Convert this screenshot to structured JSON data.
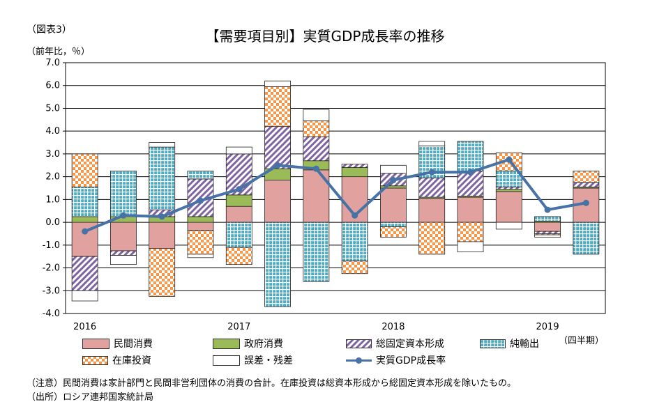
{
  "header": {
    "figure_label": "（図表3）",
    "title": "【需要項目別】実質GDP成長率の推移",
    "unit": "（前年比，％）",
    "period_label": "（四半期）"
  },
  "footer": {
    "note": "（注意）民間消費は家計部門と民間非営利団体の消費の合計。在庫投資は総資本形成から総固定資本形成を除いたもの。",
    "source": "（出所）ロシア連邦国家統計局"
  },
  "colors": {
    "private_consumption": "#e0a19f",
    "government_consumption": "#9bbb59",
    "fixed_capital": "#8064a2",
    "net_exports": "#4bacc6",
    "inventory": "#f79646",
    "error": "#ffffff",
    "gdp_line": "#4672a6"
  },
  "chart_data": {
    "type": "bar",
    "stacked": true,
    "title": "【需要項目別】実質GDP成長率の推移",
    "ylabel": "（前年比，％）",
    "xlabel": "（四半期）",
    "ylim": [
      -4.0,
      7.0
    ],
    "yticks": [
      "7.0",
      "6.0",
      "5.0",
      "4.0",
      "3.0",
      "2.0",
      "1.0",
      "0.0",
      "-1.0",
      "-2.0",
      "-3.0",
      "-4.0"
    ],
    "year_labels": [
      {
        "label": "2016",
        "at_index": 0
      },
      {
        "label": "2017",
        "at_index": 4
      },
      {
        "label": "2018",
        "at_index": 8
      },
      {
        "label": "2019",
        "at_index": 12
      }
    ],
    "categories": [
      "2016Q1",
      "2016Q2",
      "2016Q3",
      "2016Q4",
      "2017Q1",
      "2017Q2",
      "2017Q3",
      "2017Q4",
      "2018Q1",
      "2018Q2",
      "2018Q3",
      "2018Q4",
      "2019Q1",
      "2019Q2"
    ],
    "grid": true,
    "legend_position": "bottom",
    "series": [
      {
        "key": "private_consumption",
        "name": "民間消費",
        "kind": "bar",
        "values": [
          -1.5,
          -1.25,
          -1.15,
          -0.35,
          0.7,
          1.85,
          2.3,
          2.0,
          1.5,
          1.05,
          1.1,
          1.35,
          -0.4,
          1.5
        ]
      },
      {
        "key": "government_consumption",
        "name": "政府消費",
        "kind": "bar",
        "values": [
          0.25,
          0.25,
          0.25,
          0.25,
          0.5,
          0.5,
          0.4,
          0.4,
          0.1,
          0.05,
          0.05,
          0.1,
          0.05,
          0.05
        ]
      },
      {
        "key": "fixed_capital",
        "name": "総固定資本形成",
        "kind": "bar",
        "values": [
          -1.5,
          -0.2,
          0.3,
          1.65,
          1.8,
          1.85,
          1.05,
          0.15,
          0.55,
          0.85,
          1.1,
          0.1,
          -0.1,
          0.2
        ]
      },
      {
        "key": "net_exports",
        "name": "純輸出",
        "kind": "bar",
        "values": [
          1.3,
          2.0,
          2.75,
          0.35,
          -1.1,
          -3.7,
          -2.6,
          -1.7,
          -0.2,
          1.4,
          1.3,
          0.7,
          0.2,
          -1.4
        ]
      },
      {
        "key": "inventory",
        "name": "在庫投資",
        "kind": "bar",
        "values": [
          1.45,
          0,
          -2.1,
          -1.05,
          -0.75,
          1.75,
          0.7,
          -0.55,
          -0.45,
          -1.4,
          -0.85,
          0.8,
          -0.05,
          0.5
        ]
      },
      {
        "key": "error",
        "name": "誤差・残差",
        "kind": "bar",
        "values": [
          -0.45,
          -0.4,
          0.2,
          -0.15,
          0.3,
          0.25,
          0.5,
          0,
          0.35,
          0.2,
          -0.45,
          -0.3,
          -0.1,
          0
        ]
      },
      {
        "key": "gdp_line",
        "name": "実質GDP成長率",
        "kind": "line",
        "values": [
          -0.4,
          0.3,
          0.25,
          0.95,
          1.45,
          2.5,
          2.35,
          0.3,
          1.85,
          2.2,
          2.2,
          2.75,
          0.55,
          0.85
        ]
      }
    ]
  }
}
